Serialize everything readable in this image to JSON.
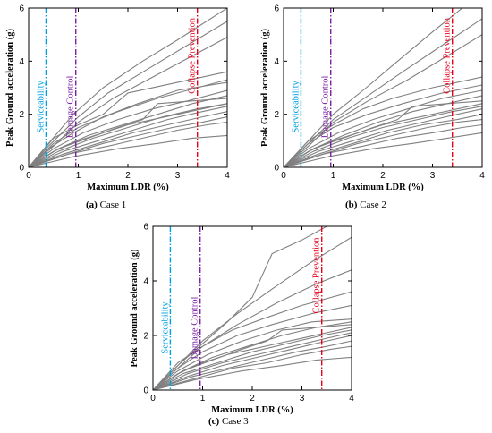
{
  "figure": {
    "captions": [
      {
        "letter": "(a)",
        "text": " Case 1"
      },
      {
        "letter": "(b)",
        "text": " Case 2"
      },
      {
        "letter": "(c)",
        "text": " Case 3"
      }
    ]
  },
  "chart_data": [
    {
      "type": "line",
      "title": "",
      "xlabel": "Maximum LDR (%)",
      "ylabel": "Peak Ground acceleration (g)",
      "xlim": [
        0,
        4
      ],
      "ylim": [
        0,
        6
      ],
      "xticks": [
        "0",
        "1",
        "2",
        "3",
        "4"
      ],
      "yticks": [
        "0",
        "2",
        "4",
        "6"
      ],
      "line_color": "#808080",
      "limit_lines": [
        {
          "name": "Serviceability",
          "x": 0.35,
          "color": "#00a0e0",
          "style": "dash-dot"
        },
        {
          "name": "Damage Control",
          "x": 0.95,
          "color": "#7a1fa2",
          "style": "dash-dot"
        },
        {
          "name": "Collapse Prevention",
          "x": 3.4,
          "color": "#e8001c",
          "style": "dash-dot"
        }
      ],
      "series": [
        {
          "x": [
            0,
            0.4,
            0.9,
            1.5,
            2.3,
            3.0,
            4.0
          ],
          "y": [
            0,
            0.9,
            2.0,
            3.0,
            4.0,
            4.8,
            6.0
          ]
        },
        {
          "x": [
            0,
            0.4,
            1.0,
            1.6,
            2.4,
            3.2,
            4.0
          ],
          "y": [
            0,
            0.8,
            1.9,
            2.8,
            3.7,
            4.6,
            5.5
          ]
        },
        {
          "x": [
            0,
            0.5,
            1.0,
            1.7,
            2.5,
            3.3,
            4.0
          ],
          "y": [
            0,
            0.8,
            1.7,
            2.6,
            3.4,
            4.2,
            4.9
          ]
        },
        {
          "x": [
            0,
            0.5,
            1.0,
            1.5,
            2.0,
            3.0,
            4.0
          ],
          "y": [
            0,
            1.1,
            1.6,
            2.0,
            2.8,
            3.2,
            3.6
          ]
        },
        {
          "x": [
            0,
            0.5,
            1.0,
            1.8,
            2.6,
            3.4,
            4.0
          ],
          "y": [
            0,
            0.9,
            1.5,
            2.1,
            2.6,
            3.0,
            3.3
          ]
        },
        {
          "x": [
            0,
            0.4,
            0.9,
            1.5,
            2.2,
            3.0,
            4.0
          ],
          "y": [
            0,
            0.7,
            1.3,
            1.9,
            2.4,
            2.9,
            3.2
          ]
        },
        {
          "x": [
            0,
            0.5,
            1.1,
            1.8,
            2.5,
            3.2,
            4.0
          ],
          "y": [
            0,
            0.7,
            1.3,
            1.8,
            2.2,
            2.5,
            2.9
          ]
        },
        {
          "x": [
            0,
            0.6,
            1.2,
            1.9,
            2.6,
            3.3,
            4.0
          ],
          "y": [
            0,
            0.7,
            1.2,
            1.6,
            2.0,
            2.4,
            2.7
          ]
        },
        {
          "x": [
            0,
            0.6,
            1.2,
            1.8,
            2.3,
            2.6,
            3.3,
            4.0
          ],
          "y": [
            0,
            0.7,
            1.1,
            1.5,
            1.8,
            2.4,
            2.5,
            2.6
          ]
        },
        {
          "x": [
            0,
            0.6,
            1.3,
            2.0,
            2.7,
            3.4,
            4.0
          ],
          "y": [
            0,
            0.6,
            1.1,
            1.5,
            1.9,
            2.2,
            2.4
          ]
        },
        {
          "x": [
            0,
            0.7,
            1.4,
            2.1,
            2.8,
            3.5,
            4.0
          ],
          "y": [
            0,
            0.6,
            1.0,
            1.4,
            1.8,
            2.1,
            2.3
          ]
        },
        {
          "x": [
            0,
            0.7,
            1.4,
            2.1,
            2.8,
            3.5,
            4.0
          ],
          "y": [
            0,
            0.5,
            0.9,
            1.3,
            1.6,
            1.9,
            2.1
          ]
        },
        {
          "x": [
            0,
            0.8,
            1.5,
            2.2,
            2.9,
            3.5,
            4.0
          ],
          "y": [
            0,
            0.5,
            0.9,
            1.2,
            1.5,
            1.7,
            1.9
          ]
        },
        {
          "x": [
            0,
            0.8,
            1.6,
            2.3,
            3.0,
            3.6,
            4.0
          ],
          "y": [
            0,
            0.5,
            0.8,
            1.1,
            1.4,
            1.6,
            1.7
          ]
        },
        {
          "x": [
            0,
            0.9,
            1.8,
            2.6,
            3.3,
            4.0
          ],
          "y": [
            0,
            0.4,
            0.7,
            0.9,
            1.1,
            1.2
          ]
        },
        {
          "x": [
            0,
            0.5,
            1.0,
            1.5,
            2.0,
            2.5,
            3.0,
            3.5,
            4.0
          ],
          "y": [
            0,
            0.6,
            1.0,
            1.3,
            1.6,
            1.8,
            2.0,
            2.2,
            2.4
          ]
        }
      ]
    },
    {
      "type": "line",
      "title": "",
      "xlabel": "Maximum LDR (%)",
      "ylabel": "Peak Ground acceleration (g)",
      "xlim": [
        0,
        4
      ],
      "ylim": [
        0,
        6
      ],
      "xticks": [
        "0",
        "1",
        "2",
        "3",
        "4"
      ],
      "yticks": [
        "0",
        "2",
        "4",
        "6"
      ],
      "line_color": "#808080",
      "limit_lines": [
        {
          "name": "Serviceability",
          "x": 0.35,
          "color": "#00a0e0",
          "style": "dash-dot"
        },
        {
          "name": "Damage Control",
          "x": 0.95,
          "color": "#7a1fa2",
          "style": "dash-dot"
        },
        {
          "name": "Collapse Prevention",
          "x": 3.4,
          "color": "#e8001c",
          "style": "dash-dot"
        }
      ],
      "series": [
        {
          "x": [
            0,
            0.5,
            1.0,
            1.6,
            2.3,
            3.0,
            3.6
          ],
          "y": [
            0,
            1.0,
            2.0,
            2.9,
            4.0,
            5.1,
            6.0
          ]
        },
        {
          "x": [
            0,
            0.5,
            1.0,
            1.7,
            2.4,
            3.2,
            4.0
          ],
          "y": [
            0,
            0.9,
            1.8,
            2.7,
            3.6,
            4.6,
            5.6
          ]
        },
        {
          "x": [
            0,
            0.5,
            1.0,
            1.7,
            2.5,
            3.3,
            4.0
          ],
          "y": [
            0,
            0.8,
            1.7,
            2.5,
            3.3,
            4.2,
            5.0
          ]
        },
        {
          "x": [
            0,
            0.5,
            1.0,
            1.6,
            2.2,
            3.0,
            4.0
          ],
          "y": [
            0,
            1.0,
            1.6,
            2.2,
            2.6,
            3.0,
            3.4
          ]
        },
        {
          "x": [
            0,
            0.5,
            1.0,
            1.7,
            2.4,
            3.2,
            4.0
          ],
          "y": [
            0,
            0.9,
            1.5,
            2.0,
            2.4,
            2.8,
            3.1
          ]
        },
        {
          "x": [
            0,
            0.5,
            1.1,
            1.8,
            2.5,
            3.2,
            4.0
          ],
          "y": [
            0,
            0.7,
            1.3,
            1.8,
            2.2,
            2.6,
            2.9
          ]
        },
        {
          "x": [
            0,
            0.6,
            1.2,
            1.9,
            2.6,
            3.3,
            4.0
          ],
          "y": [
            0,
            0.7,
            1.2,
            1.7,
            2.1,
            2.4,
            2.7
          ]
        },
        {
          "x": [
            0,
            0.6,
            1.2,
            1.8,
            2.3,
            2.6,
            3.3,
            4.0
          ],
          "y": [
            0,
            0.7,
            1.1,
            1.5,
            1.8,
            2.3,
            2.4,
            2.5
          ]
        },
        {
          "x": [
            0,
            0.6,
            1.3,
            2.0,
            2.7,
            3.4,
            4.0
          ],
          "y": [
            0,
            0.6,
            1.1,
            1.5,
            1.8,
            2.1,
            2.3
          ]
        },
        {
          "x": [
            0,
            0.7,
            1.4,
            2.1,
            2.8,
            3.5,
            4.0
          ],
          "y": [
            0,
            0.6,
            1.0,
            1.4,
            1.7,
            2.0,
            2.2
          ]
        },
        {
          "x": [
            0,
            0.7,
            1.4,
            2.1,
            2.8,
            3.5,
            4.0
          ],
          "y": [
            0,
            0.5,
            0.9,
            1.3,
            1.6,
            1.8,
            2.0
          ]
        },
        {
          "x": [
            0,
            0.8,
            1.5,
            2.2,
            2.9,
            3.5,
            4.0
          ],
          "y": [
            0,
            0.5,
            0.9,
            1.2,
            1.5,
            1.7,
            1.8
          ]
        },
        {
          "x": [
            0,
            0.8,
            1.6,
            2.3,
            3.0,
            3.6,
            4.0
          ],
          "y": [
            0,
            0.5,
            0.8,
            1.1,
            1.3,
            1.5,
            1.6
          ]
        },
        {
          "x": [
            0,
            0.9,
            1.8,
            2.6,
            3.3,
            4.0
          ],
          "y": [
            0,
            0.4,
            0.7,
            0.9,
            1.1,
            1.3
          ]
        },
        {
          "x": [
            0,
            0.5,
            1.0,
            1.5,
            2.0,
            2.5,
            3.0,
            3.5,
            4.0
          ],
          "y": [
            0,
            0.6,
            1.0,
            1.3,
            1.6,
            1.8,
            2.0,
            2.2,
            2.4
          ]
        }
      ]
    },
    {
      "type": "line",
      "title": "",
      "xlabel": "Maximum LDR (%)",
      "ylabel": "Peak Ground acceleration (g)",
      "xlim": [
        0,
        4
      ],
      "ylim": [
        0,
        6
      ],
      "xticks": [
        "0",
        "1",
        "2",
        "3",
        "4"
      ],
      "yticks": [
        "0",
        "2",
        "4",
        "6"
      ],
      "line_color": "#808080",
      "limit_lines": [
        {
          "name": "Serviceability",
          "x": 0.35,
          "color": "#00a0e0",
          "style": "dash-dot"
        },
        {
          "name": "Damage Control",
          "x": 0.95,
          "color": "#7a1fa2",
          "style": "dash-dot"
        },
        {
          "name": "Collapse Prevention",
          "x": 3.4,
          "color": "#e8001c",
          "style": "dash-dot"
        }
      ],
      "series": [
        {
          "x": [
            0,
            0.5,
            1.0,
            1.5,
            2.0,
            2.4,
            3.0,
            3.5
          ],
          "y": [
            0,
            0.9,
            1.7,
            2.5,
            3.4,
            5.0,
            5.5,
            6.0
          ]
        },
        {
          "x": [
            0,
            0.5,
            1.0,
            1.7,
            2.4,
            3.2,
            4.0
          ],
          "y": [
            0,
            0.9,
            1.8,
            2.8,
            3.7,
            4.7,
            5.6
          ]
        },
        {
          "x": [
            0,
            0.5,
            1.0,
            1.7,
            2.5,
            3.3,
            4.0
          ],
          "y": [
            0,
            0.8,
            1.6,
            2.4,
            3.2,
            3.9,
            4.4
          ]
        },
        {
          "x": [
            0,
            0.5,
            1.0,
            1.6,
            2.2,
            3.0,
            4.0
          ],
          "y": [
            0,
            1.0,
            1.6,
            2.2,
            2.6,
            3.1,
            3.6
          ]
        },
        {
          "x": [
            0,
            0.5,
            1.0,
            1.7,
            2.4,
            3.2,
            4.0
          ],
          "y": [
            0,
            0.8,
            1.4,
            2.0,
            2.4,
            2.8,
            3.1
          ]
        },
        {
          "x": [
            0,
            0.5,
            1.1,
            1.8,
            2.5,
            3.2,
            4.0
          ],
          "y": [
            0,
            0.7,
            1.3,
            1.8,
            2.2,
            2.5,
            2.6
          ]
        },
        {
          "x": [
            0,
            0.6,
            1.2,
            1.9,
            2.6,
            3.3,
            4.0
          ],
          "y": [
            0,
            0.7,
            1.2,
            1.6,
            2.0,
            2.3,
            2.5
          ]
        },
        {
          "x": [
            0,
            0.6,
            1.2,
            1.8,
            2.3,
            2.6,
            3.3,
            4.0
          ],
          "y": [
            0,
            0.7,
            1.1,
            1.5,
            1.8,
            2.2,
            2.3,
            2.4
          ]
        },
        {
          "x": [
            0,
            0.6,
            1.3,
            2.0,
            2.7,
            3.4,
            4.0
          ],
          "y": [
            0,
            0.6,
            1.0,
            1.4,
            1.7,
            2.0,
            2.2
          ]
        },
        {
          "x": [
            0,
            0.7,
            1.4,
            2.1,
            2.8,
            3.5,
            4.0
          ],
          "y": [
            0,
            0.6,
            1.0,
            1.3,
            1.6,
            1.9,
            2.1
          ]
        },
        {
          "x": [
            0,
            0.7,
            1.4,
            2.1,
            2.8,
            3.5,
            4.0
          ],
          "y": [
            0,
            0.5,
            0.9,
            1.2,
            1.5,
            1.8,
            2.0
          ]
        },
        {
          "x": [
            0,
            0.8,
            1.5,
            2.2,
            2.9,
            3.5,
            4.0
          ],
          "y": [
            0,
            0.5,
            0.8,
            1.1,
            1.4,
            1.6,
            1.8
          ]
        },
        {
          "x": [
            0,
            0.8,
            1.6,
            2.3,
            3.0,
            3.6,
            4.0
          ],
          "y": [
            0,
            0.4,
            0.8,
            1.0,
            1.3,
            1.5,
            1.6
          ]
        },
        {
          "x": [
            0,
            0.9,
            1.8,
            2.6,
            3.3,
            4.0
          ],
          "y": [
            0,
            0.4,
            0.7,
            0.9,
            1.1,
            1.2
          ]
        },
        {
          "x": [
            0,
            0.5,
            1.0,
            1.5,
            2.0,
            2.5,
            3.0,
            3.5,
            4.0
          ],
          "y": [
            0,
            0.6,
            1.0,
            1.3,
            1.5,
            1.7,
            1.9,
            2.1,
            2.3
          ]
        }
      ]
    }
  ]
}
